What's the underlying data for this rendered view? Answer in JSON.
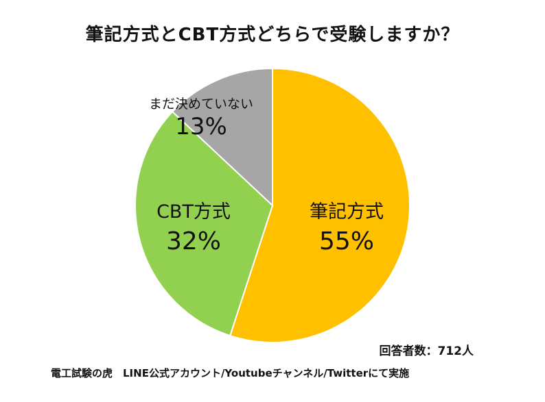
{
  "chart_data": {
    "type": "pie",
    "title": "筆記方式とCBT方式どちらで受験しますか？",
    "slices": [
      {
        "label": "筆記方式",
        "value": 55,
        "value_label": "55%",
        "color": "#FFC000"
      },
      {
        "label": "CBT方式",
        "value": 32,
        "value_label": "32%",
        "color": "#92D050"
      },
      {
        "label": "まだ決めていない",
        "value": 13,
        "value_label": "13%",
        "color": "#A6A6A6"
      }
    ],
    "legend": "none",
    "start": "12 o'clock",
    "direction": "clockwise"
  },
  "annotations": {
    "respondents": "回答者数：712人",
    "source": "電工試験の虎　LINE公式アカウント/Youtubeチャンネル/Twitterにて実施"
  }
}
